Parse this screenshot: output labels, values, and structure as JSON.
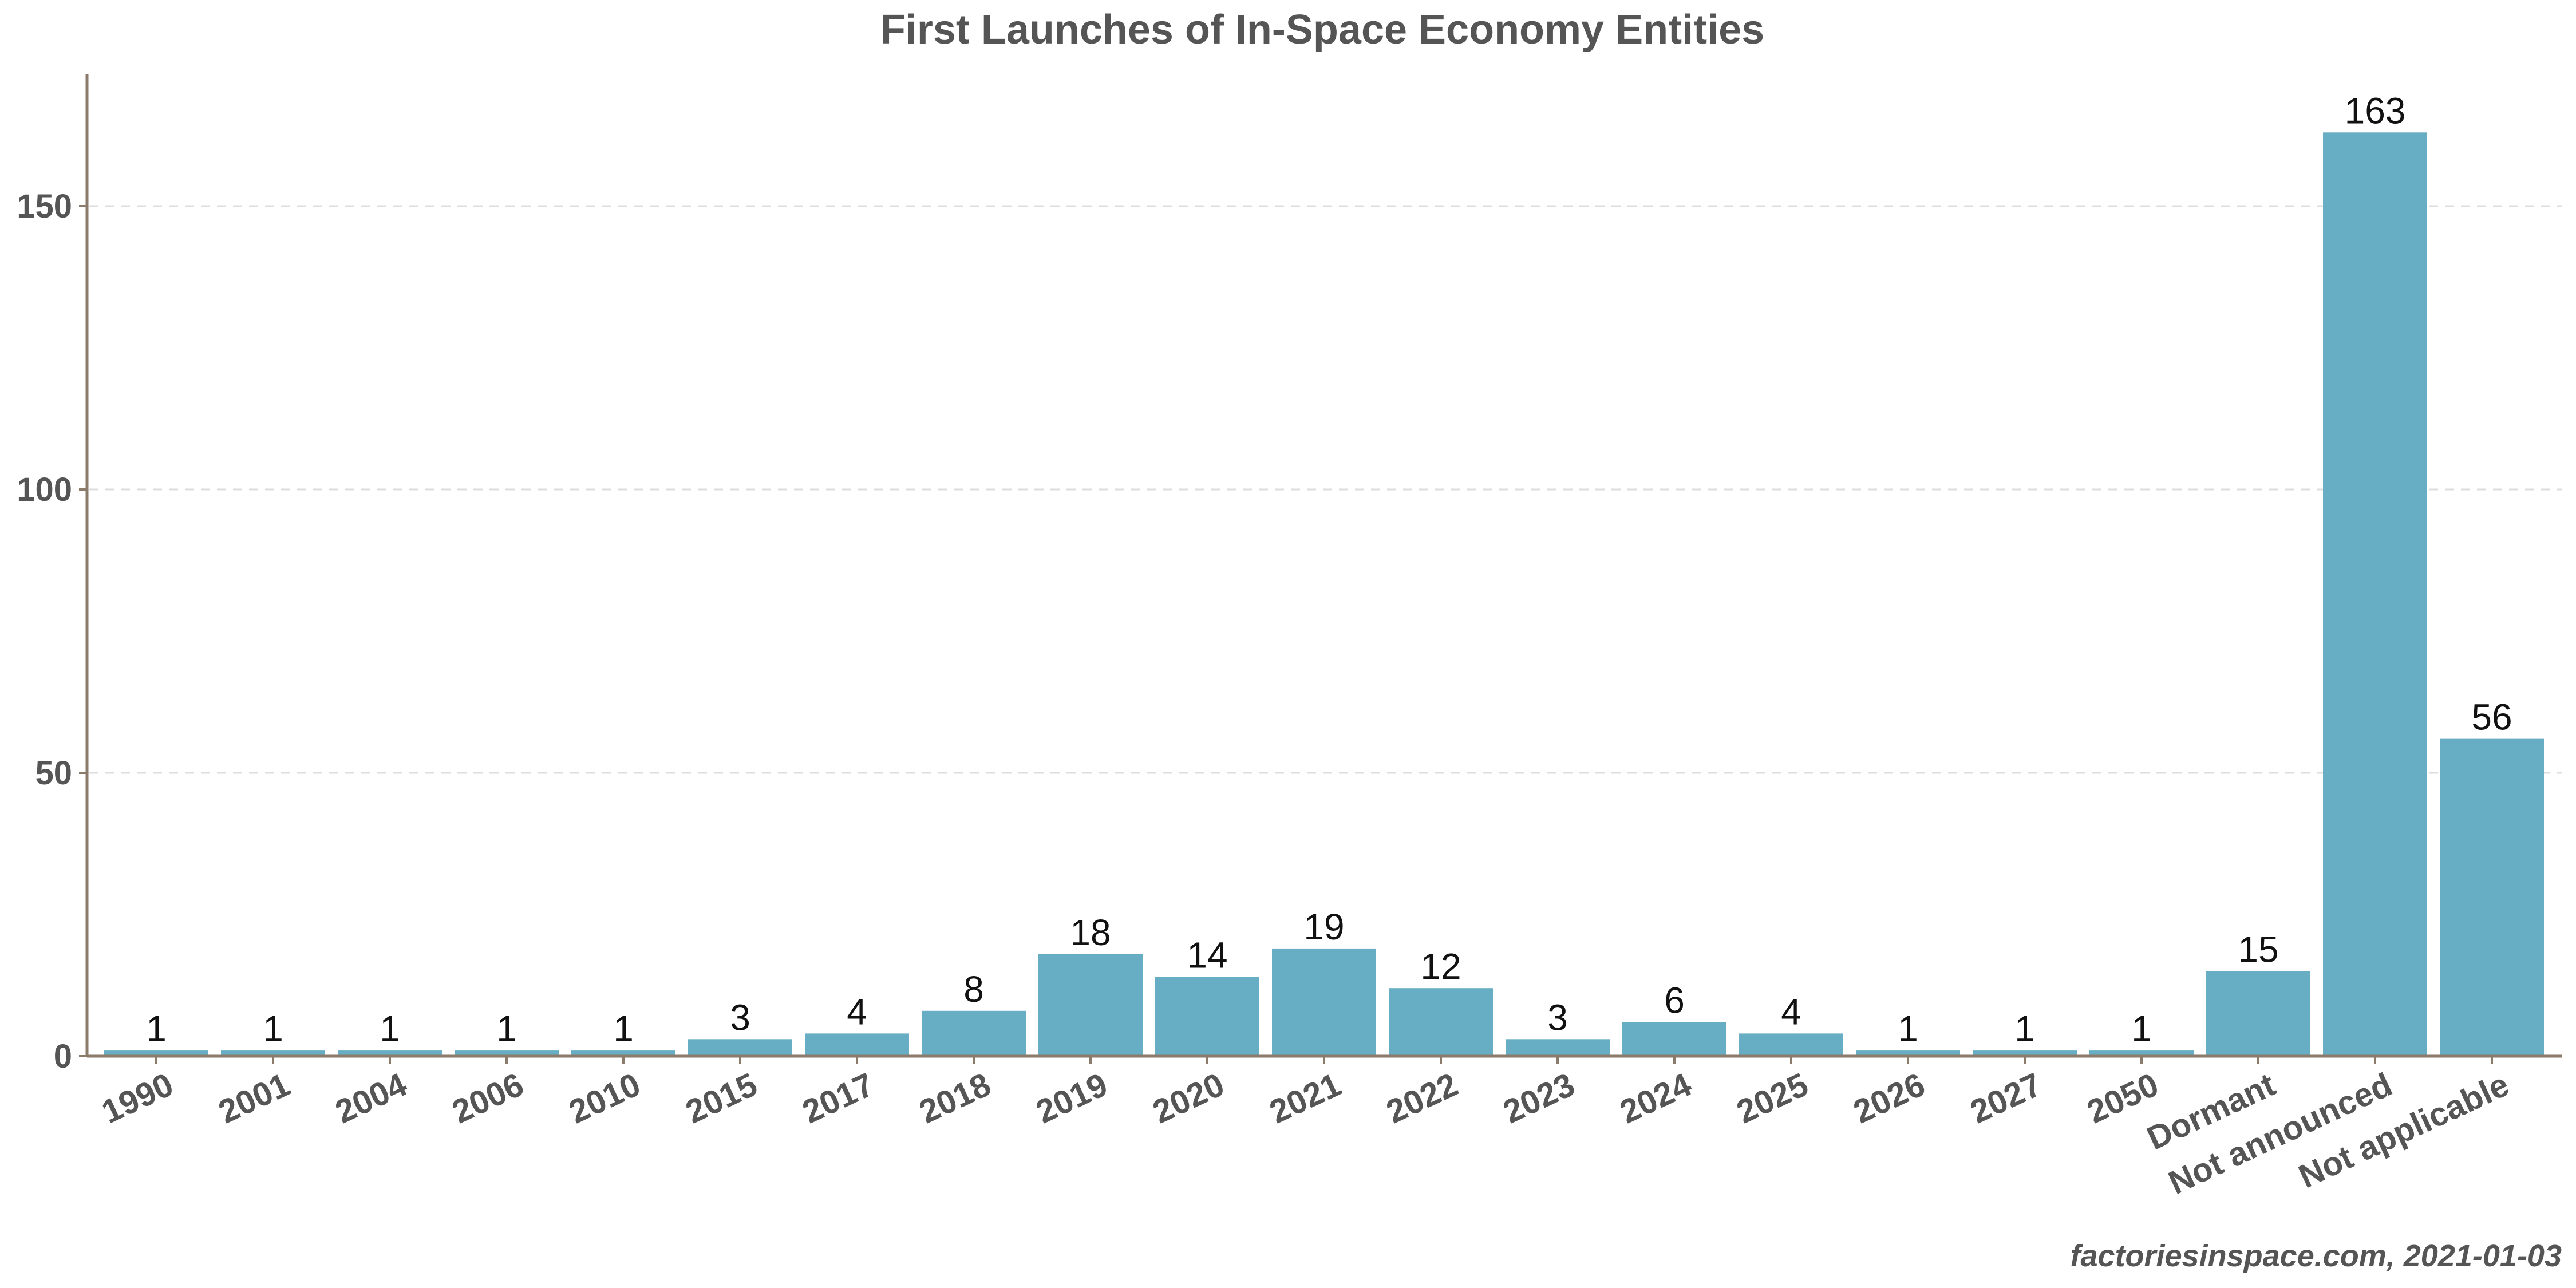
{
  "chart_data": {
    "type": "bar",
    "title": "First Launches of In-Space Economy Entities",
    "xlabel": "",
    "ylabel": "",
    "categories": [
      "1990",
      "2001",
      "2004",
      "2006",
      "2010",
      "2015",
      "2017",
      "2018",
      "2019",
      "2020",
      "2021",
      "2022",
      "2023",
      "2024",
      "2025",
      "2026",
      "2027",
      "2050",
      "Dormant",
      "Not announced",
      "Not applicable"
    ],
    "values": [
      1,
      1,
      1,
      1,
      1,
      3,
      4,
      8,
      18,
      14,
      19,
      12,
      3,
      6,
      4,
      1,
      1,
      1,
      15,
      163,
      56
    ],
    "ylim": [
      0,
      173
    ],
    "yticks": [
      0,
      50,
      100,
      150
    ],
    "grid": "horizontal dashed",
    "legend": "none",
    "colors": {
      "bar": "#67aec4",
      "axis": "#8b7b6b",
      "grid": "#dddddd",
      "text": "#555555"
    }
  },
  "credit": "factoriesinspace.com, 2021-01-03"
}
